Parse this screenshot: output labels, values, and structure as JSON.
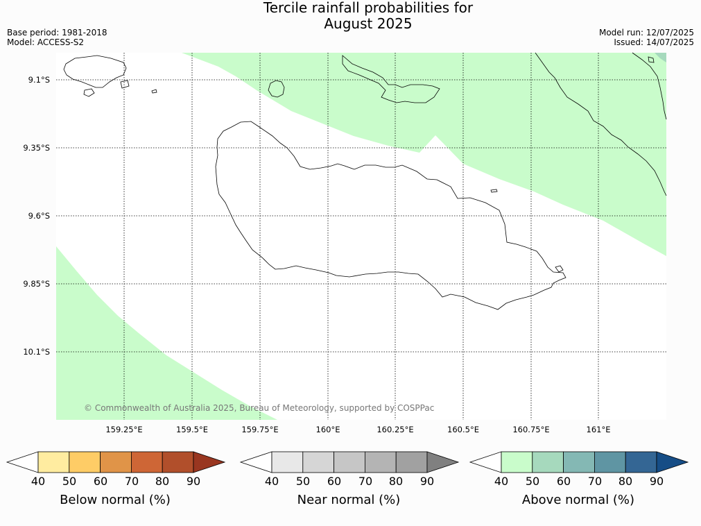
{
  "title_line1": "Tercile rainfall probabilities for",
  "title_line2": "August 2025",
  "meta": {
    "base_period": "Base period: 1981-2018",
    "model": "Model: ACCESS-S2",
    "model_run": "Model run: 12/07/2025",
    "issued": "Issued: 14/07/2025"
  },
  "map": {
    "lat_labels": [
      "9.1°S",
      "9.35°S",
      "9.6°S",
      "9.85°S",
      "10.1°S"
    ],
    "lon_labels": [
      "159.25°E",
      "159.5°E",
      "159.75°E",
      "160°E",
      "160.25°E",
      "160.5°E",
      "160.75°E",
      "161°E"
    ],
    "copyright": "© Commonwealth of Australia 2025, Bureau of Meteorology, supported by COSPPac",
    "colors": {
      "above_50": "#c9fccb",
      "above_60": "#a6d9bd",
      "coast": "#000000",
      "grid": "#000000"
    }
  },
  "legends": [
    {
      "name": "below",
      "title": "Below normal (%)",
      "ticks": [
        "40",
        "50",
        "60",
        "70",
        "80",
        "90"
      ],
      "colors": [
        "#ffffff",
        "#ffeca0",
        "#fecc66",
        "#e09448",
        "#ce6636",
        "#b14f2b",
        "#993620"
      ]
    },
    {
      "name": "near",
      "title": "Near normal (%)",
      "ticks": [
        "40",
        "50",
        "60",
        "70",
        "80",
        "90"
      ],
      "colors": [
        "#ffffff",
        "#e8e8e8",
        "#d6d6d6",
        "#c6c6c6",
        "#b4b4b4",
        "#a1a1a1",
        "#808080"
      ]
    },
    {
      "name": "above",
      "title": "Above normal (%)",
      "ticks": [
        "40",
        "50",
        "60",
        "70",
        "80",
        "90"
      ],
      "colors": [
        "#ffffff",
        "#c9fccb",
        "#a6d9bd",
        "#84b8b4",
        "#5f95a3",
        "#346694",
        "#164d86"
      ]
    }
  ]
}
